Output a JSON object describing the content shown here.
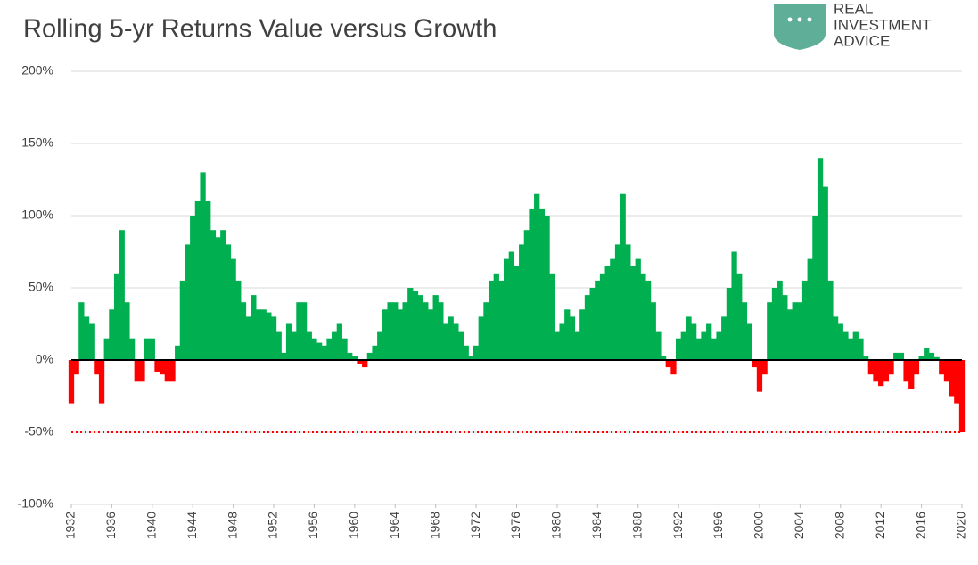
{
  "chart_data": {
    "type": "bar",
    "title": "Rolling 5-yr Returns  Value versus Growth",
    "x": [
      1932,
      1932.5,
      1933,
      1933.5,
      1934,
      1934.5,
      1935,
      1935.5,
      1936,
      1936.5,
      1937,
      1937.5,
      1938,
      1938.5,
      1939,
      1939.5,
      1940,
      1940.5,
      1941,
      1941.5,
      1942,
      1942.5,
      1943,
      1943.5,
      1944,
      1944.5,
      1945,
      1945.5,
      1946,
      1946.5,
      1947,
      1947.5,
      1948,
      1948.5,
      1949,
      1949.5,
      1950,
      1950.5,
      1951,
      1951.5,
      1952,
      1952.5,
      1953,
      1953.5,
      1954,
      1954.5,
      1955,
      1955.5,
      1956,
      1956.5,
      1957,
      1957.5,
      1958,
      1958.5,
      1959,
      1959.5,
      1960,
      1960.5,
      1961,
      1961.5,
      1962,
      1962.5,
      1963,
      1963.5,
      1964,
      1964.5,
      1965,
      1965.5,
      1966,
      1966.5,
      1967,
      1967.5,
      1968,
      1968.5,
      1969,
      1969.5,
      1970,
      1970.5,
      1971,
      1971.5,
      1972,
      1972.5,
      1973,
      1973.5,
      1974,
      1974.5,
      1975,
      1975.5,
      1976,
      1976.5,
      1977,
      1977.5,
      1978,
      1978.5,
      1979,
      1979.5,
      1980,
      1980.5,
      1981,
      1981.5,
      1982,
      1982.5,
      1983,
      1983.5,
      1984,
      1984.5,
      1985,
      1985.5,
      1986,
      1986.5,
      1987,
      1987.5,
      1988,
      1988.5,
      1989,
      1989.5,
      1990,
      1990.5,
      1991,
      1991.5,
      1992,
      1992.5,
      1993,
      1993.5,
      1994,
      1994.5,
      1995,
      1995.5,
      1996,
      1996.5,
      1997,
      1997.5,
      1998,
      1998.5,
      1999,
      1999.5,
      2000,
      2000.5,
      2001,
      2001.5,
      2002,
      2002.5,
      2003,
      2003.5,
      2004,
      2004.5,
      2005,
      2005.5,
      2006,
      2006.5,
      2007,
      2007.5,
      2008,
      2008.5,
      2009,
      2009.5,
      2010,
      2010.5,
      2011,
      2011.5,
      2012,
      2012.5,
      2013,
      2013.5,
      2014,
      2014.5,
      2015,
      2015.5,
      2016,
      2016.5,
      2017,
      2017.5,
      2018,
      2018.5,
      2019,
      2019.5,
      2020
    ],
    "values": [
      -30,
      -10,
      40,
      30,
      25,
      -10,
      -30,
      15,
      35,
      60,
      90,
      40,
      15,
      -15,
      -15,
      15,
      15,
      -8,
      -10,
      -15,
      -15,
      10,
      55,
      80,
      100,
      110,
      130,
      110,
      90,
      85,
      90,
      80,
      70,
      55,
      40,
      30,
      45,
      35,
      35,
      33,
      30,
      20,
      5,
      25,
      20,
      40,
      40,
      20,
      15,
      12,
      10,
      15,
      20,
      25,
      15,
      5,
      3,
      -3,
      -5,
      5,
      10,
      20,
      35,
      40,
      40,
      35,
      40,
      50,
      48,
      45,
      40,
      35,
      45,
      40,
      25,
      30,
      25,
      20,
      10,
      3,
      10,
      30,
      40,
      55,
      60,
      55,
      70,
      75,
      65,
      80,
      90,
      105,
      115,
      105,
      100,
      60,
      20,
      25,
      35,
      30,
      20,
      35,
      45,
      50,
      55,
      60,
      65,
      70,
      80,
      115,
      80,
      65,
      70,
      60,
      55,
      40,
      20,
      3,
      -5,
      -10,
      15,
      20,
      30,
      25,
      15,
      20,
      25,
      15,
      20,
      30,
      50,
      75,
      60,
      40,
      25,
      -5,
      -22,
      -10,
      40,
      50,
      55,
      45,
      35,
      40,
      40,
      55,
      70,
      100,
      140,
      120,
      55,
      30,
      25,
      20,
      15,
      20,
      15,
      3,
      -10,
      -15,
      -18,
      -15,
      -10,
      5,
      5,
      -15,
      -20,
      -10,
      3,
      8,
      5,
      2,
      -10,
      -15,
      -25,
      -30,
      -50
    ],
    "positive_color": "#00b050",
    "negative_color": "#ff0000",
    "xlim": [
      1932,
      2020
    ],
    "xticks": [
      1932,
      1936,
      1940,
      1944,
      1948,
      1952,
      1956,
      1960,
      1964,
      1968,
      1972,
      1976,
      1980,
      1984,
      1988,
      1992,
      1996,
      2000,
      2004,
      2008,
      2012,
      2016,
      2020
    ],
    "ylim": [
      -100,
      200
    ],
    "yticks": [
      {
        "value": -100,
        "label": "-100%"
      },
      {
        "value": -50,
        "label": "-50%"
      },
      {
        "value": 0,
        "label": "0%"
      },
      {
        "value": 50,
        "label": "50%"
      },
      {
        "value": 100,
        "label": "100%"
      },
      {
        "value": 150,
        "label": "150%"
      },
      {
        "value": 200,
        "label": "200%"
      }
    ],
    "grid": true,
    "reference_line": {
      "value": -50,
      "color": "#ff0000"
    }
  },
  "logo": [
    "REAL",
    "INVESTMENT",
    "ADVICE"
  ]
}
